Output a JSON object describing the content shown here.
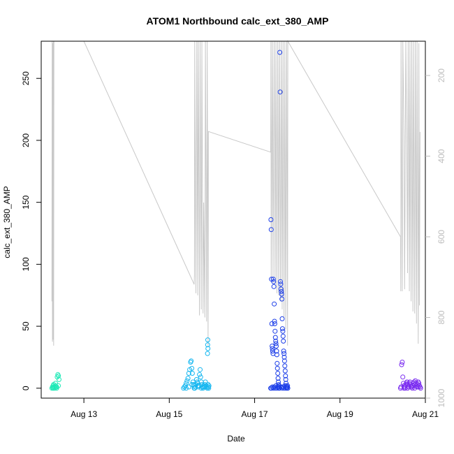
{
  "chart_data": {
    "type": "scatter",
    "title": "ATOM1 Northbound calc_ext_380_AMP",
    "xlabel": "Date",
    "ylabel": "calc_ext_380_AMP",
    "x_ticks": [
      "Aug 13",
      "Aug 15",
      "Aug 17",
      "Aug 19",
      "Aug 21"
    ],
    "y_ticks": [
      0,
      50,
      100,
      150,
      200,
      250
    ],
    "y_right_ticks": [
      200,
      400,
      600,
      800,
      1000
    ],
    "xlim": [
      "2013-08-12 00:00",
      "2013-08-21 00:00"
    ],
    "ylim": [
      -8,
      280
    ],
    "y_right_lim": [
      1000,
      115
    ],
    "y_right_reversed": true,
    "colors": {
      "line": "#c8c8c8",
      "frame": "#000000",
      "right_axis": "#bdbdbd",
      "series_1": "#1de9b6",
      "series_2": "#16b7f0",
      "series_3": "#1c3ee8",
      "series_4": "#7a2cf0"
    },
    "series": [
      {
        "color": "#1de9b6",
        "points": [
          [
            "2013-08-12 06:00",
            0
          ],
          [
            "2013-08-12 06:20",
            1
          ],
          [
            "2013-08-12 06:40",
            2
          ],
          [
            "2013-08-12 07:00",
            3
          ],
          [
            "2013-08-12 07:20",
            1
          ],
          [
            "2013-08-12 07:40",
            0
          ],
          [
            "2013-08-12 08:00",
            2
          ],
          [
            "2013-08-12 08:20",
            1
          ],
          [
            "2013-08-12 08:40",
            0
          ],
          [
            "2013-08-12 09:00",
            9
          ],
          [
            "2013-08-12 09:20",
            11
          ],
          [
            "2013-08-12 09:40",
            10
          ],
          [
            "2013-08-12 10:00",
            7
          ],
          [
            "2013-08-12 08:00",
            4
          ],
          [
            "2013-08-12 07:00",
            0
          ],
          [
            "2013-08-12 09:40",
            2
          ],
          [
            "2013-08-12 06:40",
            0
          ],
          [
            "2013-08-12 08:40",
            1
          ]
        ]
      },
      {
        "color": "#16b7f0",
        "points": [
          [
            "2013-08-15 08:00",
            0
          ],
          [
            "2013-08-15 08:30",
            1
          ],
          [
            "2013-08-15 09:00",
            2
          ],
          [
            "2013-08-15 09:30",
            4
          ],
          [
            "2013-08-15 10:00",
            6
          ],
          [
            "2013-08-15 10:30",
            8
          ],
          [
            "2013-08-15 11:00",
            12
          ],
          [
            "2013-08-15 11:30",
            15
          ],
          [
            "2013-08-15 12:00",
            21
          ],
          [
            "2013-08-15 12:20",
            22
          ],
          [
            "2013-08-15 12:40",
            16
          ],
          [
            "2013-08-15 13:00",
            12
          ],
          [
            "2013-08-15 13:20",
            5
          ],
          [
            "2013-08-15 13:40",
            3
          ],
          [
            "2013-08-15 14:00",
            2
          ],
          [
            "2013-08-15 14:20",
            0
          ],
          [
            "2013-08-15 14:40",
            1
          ],
          [
            "2013-08-15 15:00",
            3
          ],
          [
            "2013-08-15 15:20",
            7
          ],
          [
            "2013-08-15 15:40",
            5
          ],
          [
            "2013-08-15 16:00",
            2
          ],
          [
            "2013-08-15 16:20",
            1
          ],
          [
            "2013-08-15 16:40",
            2
          ],
          [
            "2013-08-15 17:00",
            11
          ],
          [
            "2013-08-15 17:20",
            15
          ],
          [
            "2013-08-15 17:40",
            9
          ],
          [
            "2013-08-15 18:00",
            5
          ],
          [
            "2013-08-15 18:20",
            3
          ],
          [
            "2013-08-15 18:40",
            1
          ],
          [
            "2013-08-15 19:00",
            0
          ],
          [
            "2013-08-15 19:20",
            1
          ],
          [
            "2013-08-15 19:40",
            2
          ],
          [
            "2013-08-15 20:00",
            3
          ],
          [
            "2013-08-15 20:20",
            5
          ],
          [
            "2013-08-15 20:40",
            2
          ],
          [
            "2013-08-15 21:00",
            1
          ],
          [
            "2013-08-15 21:20",
            0
          ],
          [
            "2013-08-15 21:30",
            28
          ],
          [
            "2013-08-15 21:35",
            35
          ],
          [
            "2013-08-15 21:40",
            39
          ],
          [
            "2013-08-15 21:45",
            32
          ],
          [
            "2013-08-15 21:50",
            3
          ],
          [
            "2013-08-15 22:00",
            1
          ],
          [
            "2013-08-15 22:10",
            0
          ],
          [
            "2013-08-15 22:20",
            2
          ],
          [
            "2013-08-15 09:30",
            0
          ],
          [
            "2013-08-15 11:00",
            1
          ],
          [
            "2013-08-15 12:40",
            3
          ],
          [
            "2013-08-15 14:00",
            0
          ],
          [
            "2013-08-15 16:00",
            4
          ],
          [
            "2013-08-15 18:00",
            0
          ],
          [
            "2013-08-15 20:00",
            1
          ]
        ]
      },
      {
        "color": "#1c3ee8",
        "points": [
          [
            "2013-08-17 09:00",
            0
          ],
          [
            "2013-08-17 09:10",
            136
          ],
          [
            "2013-08-17 09:20",
            128
          ],
          [
            "2013-08-17 09:30",
            88
          ],
          [
            "2013-08-17 09:40",
            52
          ],
          [
            "2013-08-17 09:50",
            34
          ],
          [
            "2013-08-17 10:00",
            32
          ],
          [
            "2013-08-17 10:10",
            30
          ],
          [
            "2013-08-17 10:20",
            28
          ],
          [
            "2013-08-17 10:30",
            88
          ],
          [
            "2013-08-17 10:40",
            86
          ],
          [
            "2013-08-17 10:50",
            82
          ],
          [
            "2013-08-17 11:00",
            68
          ],
          [
            "2013-08-17 11:10",
            54
          ],
          [
            "2013-08-17 11:20",
            52
          ],
          [
            "2013-08-17 11:30",
            46
          ],
          [
            "2013-08-17 11:40",
            41
          ],
          [
            "2013-08-17 11:50",
            38
          ],
          [
            "2013-08-17 12:00",
            36
          ],
          [
            "2013-08-17 12:10",
            34
          ],
          [
            "2013-08-17 12:20",
            30
          ],
          [
            "2013-08-17 12:30",
            27
          ],
          [
            "2013-08-17 12:40",
            20
          ],
          [
            "2013-08-17 12:50",
            16
          ],
          [
            "2013-08-17 13:00",
            12
          ],
          [
            "2013-08-17 13:10",
            8
          ],
          [
            "2013-08-17 13:20",
            5
          ],
          [
            "2013-08-17 13:30",
            3
          ],
          [
            "2013-08-17 13:40",
            2
          ],
          [
            "2013-08-17 13:50",
            1
          ],
          [
            "2013-08-17 14:00",
            0
          ],
          [
            "2013-08-17 14:10",
            271
          ],
          [
            "2013-08-17 14:20",
            239
          ],
          [
            "2013-08-17 14:30",
            86
          ],
          [
            "2013-08-17 14:40",
            84
          ],
          [
            "2013-08-17 14:50",
            80
          ],
          [
            "2013-08-17 15:00",
            78
          ],
          [
            "2013-08-17 15:10",
            76
          ],
          [
            "2013-08-17 15:20",
            72
          ],
          [
            "2013-08-17 15:30",
            56
          ],
          [
            "2013-08-17 15:40",
            48
          ],
          [
            "2013-08-17 15:50",
            46
          ],
          [
            "2013-08-17 16:00",
            42
          ],
          [
            "2013-08-17 16:10",
            38
          ],
          [
            "2013-08-17 16:20",
            30
          ],
          [
            "2013-08-17 16:30",
            28
          ],
          [
            "2013-08-17 16:40",
            25
          ],
          [
            "2013-08-17 16:50",
            22
          ],
          [
            "2013-08-17 17:00",
            18
          ],
          [
            "2013-08-17 17:10",
            14
          ],
          [
            "2013-08-17 17:20",
            10
          ],
          [
            "2013-08-17 17:30",
            7
          ],
          [
            "2013-08-17 17:40",
            4
          ],
          [
            "2013-08-17 17:50",
            2
          ],
          [
            "2013-08-17 18:00",
            1
          ],
          [
            "2013-08-17 18:10",
            0
          ],
          [
            "2013-08-17 18:20",
            1
          ],
          [
            "2013-08-17 18:30",
            2
          ],
          [
            "2013-08-17 18:40",
            0
          ],
          [
            "2013-08-17 09:30",
            0
          ],
          [
            "2013-08-17 10:00",
            1
          ],
          [
            "2013-08-17 10:30",
            0
          ],
          [
            "2013-08-17 11:00",
            1
          ],
          [
            "2013-08-17 11:30",
            0
          ],
          [
            "2013-08-17 12:00",
            2
          ],
          [
            "2013-08-17 12:30",
            0
          ],
          [
            "2013-08-17 13:00",
            1
          ],
          [
            "2013-08-17 13:30",
            0
          ],
          [
            "2013-08-17 15:00",
            1
          ],
          [
            "2013-08-17 15:30",
            0
          ],
          [
            "2013-08-17 16:00",
            1
          ],
          [
            "2013-08-17 16:30",
            0
          ],
          [
            "2013-08-17 17:00",
            2
          ],
          [
            "2013-08-17 17:30",
            0
          ]
        ]
      },
      {
        "color": "#7a2cf0",
        "points": [
          [
            "2013-08-20 10:00",
            0
          ],
          [
            "2013-08-20 10:20",
            1
          ],
          [
            "2013-08-20 10:40",
            19
          ],
          [
            "2013-08-20 11:00",
            21
          ],
          [
            "2013-08-20 11:20",
            9
          ],
          [
            "2013-08-20 11:40",
            4
          ],
          [
            "2013-08-20 12:00",
            2
          ],
          [
            "2013-08-20 12:20",
            1
          ],
          [
            "2013-08-20 12:40",
            0
          ],
          [
            "2013-08-20 13:00",
            3
          ],
          [
            "2013-08-20 13:20",
            4
          ],
          [
            "2013-08-20 13:40",
            5
          ],
          [
            "2013-08-20 14:00",
            3
          ],
          [
            "2013-08-20 14:20",
            2
          ],
          [
            "2013-08-20 14:40",
            1
          ],
          [
            "2013-08-20 15:00",
            4
          ],
          [
            "2013-08-20 15:20",
            5
          ],
          [
            "2013-08-20 15:40",
            3
          ],
          [
            "2013-08-20 16:00",
            2
          ],
          [
            "2013-08-20 16:20",
            1
          ],
          [
            "2013-08-20 16:40",
            0
          ],
          [
            "2013-08-20 17:00",
            2
          ],
          [
            "2013-08-20 17:20",
            4
          ],
          [
            "2013-08-20 17:40",
            5
          ],
          [
            "2013-08-20 18:00",
            3
          ],
          [
            "2013-08-20 18:20",
            6
          ],
          [
            "2013-08-20 18:40",
            4
          ],
          [
            "2013-08-20 19:00",
            2
          ],
          [
            "2013-08-20 19:20",
            1
          ],
          [
            "2013-08-20 19:40",
            3
          ],
          [
            "2013-08-20 20:00",
            5
          ],
          [
            "2013-08-20 20:20",
            4
          ],
          [
            "2013-08-20 20:40",
            2
          ],
          [
            "2013-08-20 21:00",
            1
          ],
          [
            "2013-08-20 21:20",
            0
          ],
          [
            "2013-08-20 12:00",
            0
          ],
          [
            "2013-08-20 14:00",
            0
          ],
          [
            "2013-08-20 16:00",
            1
          ],
          [
            "2013-08-20 18:00",
            0
          ],
          [
            "2013-08-20 20:00",
            1
          ]
        ]
      }
    ],
    "line_series": {
      "axis": "right",
      "points": [
        [
          "2013-08-12 06:00",
          760
        ],
        [
          "2013-08-12 06:10",
          100
        ],
        [
          "2013-08-12 06:20",
          860
        ],
        [
          "2013-08-12 06:30",
          120
        ],
        [
          "2013-08-12 06:40",
          855
        ],
        [
          "2013-08-12 06:50",
          110
        ],
        [
          "2013-08-12 07:00",
          870
        ],
        [
          "2013-08-12 07:10",
          115
        ],
        [
          "2013-08-13 00:00",
          115
        ],
        [
          "2013-08-15 14:00",
          718
        ],
        [
          "2013-08-15 14:10",
          695
        ],
        [
          "2013-08-15 14:20",
          100
        ],
        [
          "2013-08-15 15:00",
          740
        ],
        [
          "2013-08-15 15:30",
          115
        ],
        [
          "2013-08-15 16:00",
          745
        ],
        [
          "2013-08-15 16:20",
          115
        ],
        [
          "2013-08-15 17:00",
          795
        ],
        [
          "2013-08-15 17:20",
          115
        ],
        [
          "2013-08-15 18:00",
          780
        ],
        [
          "2013-08-15 18:20",
          115
        ],
        [
          "2013-08-15 19:00",
          790
        ],
        [
          "2013-08-15 19:20",
          515
        ],
        [
          "2013-08-15 20:00",
          800
        ],
        [
          "2013-08-15 20:20",
          115
        ],
        [
          "2013-08-15 21:00",
          810
        ],
        [
          "2013-08-15 21:20",
          115
        ],
        [
          "2013-08-15 21:50",
          870
        ],
        [
          "2013-08-15 22:00",
          339
        ],
        [
          "2013-08-17 09:00",
          390
        ],
        [
          "2013-08-17 09:10",
          115
        ],
        [
          "2013-08-17 09:20",
          705
        ],
        [
          "2013-08-17 10:00",
          115
        ],
        [
          "2013-08-17 10:20",
          715
        ],
        [
          "2013-08-17 11:00",
          115
        ],
        [
          "2013-08-17 11:30",
          720
        ],
        [
          "2013-08-17 12:00",
          115
        ],
        [
          "2013-08-17 12:30",
          740
        ],
        [
          "2013-08-17 13:00",
          115
        ],
        [
          "2013-08-17 13:30",
          745
        ],
        [
          "2013-08-17 14:00",
          115
        ],
        [
          "2013-08-17 14:30",
          760
        ],
        [
          "2013-08-17 15:00",
          115
        ],
        [
          "2013-08-17 15:30",
          780
        ],
        [
          "2013-08-17 16:00",
          115
        ],
        [
          "2013-08-17 16:30",
          800
        ],
        [
          "2013-08-17 17:00",
          115
        ],
        [
          "2013-08-17 17:30",
          830
        ],
        [
          "2013-08-17 18:00",
          115
        ],
        [
          "2013-08-17 18:30",
          870
        ],
        [
          "2013-08-17 18:40",
          115
        ],
        [
          "2013-08-20 10:00",
          600
        ],
        [
          "2013-08-20 10:10",
          735
        ],
        [
          "2013-08-20 10:20",
          115
        ],
        [
          "2013-08-20 11:00",
          735
        ],
        [
          "2013-08-20 11:20",
          115
        ],
        [
          "2013-08-20 12:00",
          350
        ],
        [
          "2013-08-20 12:20",
          730
        ],
        [
          "2013-08-20 13:00",
          115
        ],
        [
          "2013-08-20 13:30",
          350
        ],
        [
          "2013-08-20 14:00",
          690
        ],
        [
          "2013-08-20 14:20",
          115
        ],
        [
          "2013-08-20 15:00",
          735
        ],
        [
          "2013-08-20 15:20",
          115
        ],
        [
          "2013-08-20 16:00",
          760
        ],
        [
          "2013-08-20 16:20",
          115
        ],
        [
          "2013-08-20 17:00",
          785
        ],
        [
          "2013-08-20 17:20",
          115
        ],
        [
          "2013-08-20 18:00",
          790
        ],
        [
          "2013-08-20 18:20",
          115
        ],
        [
          "2013-08-20 19:00",
          815
        ],
        [
          "2013-08-20 19:20",
          115
        ],
        [
          "2013-08-20 20:00",
          865
        ],
        [
          "2013-08-20 20:20",
          120
        ],
        [
          "2013-08-20 20:40",
          770
        ],
        [
          "2013-08-20 21:00",
          340
        ]
      ]
    },
    "grid": false
  }
}
